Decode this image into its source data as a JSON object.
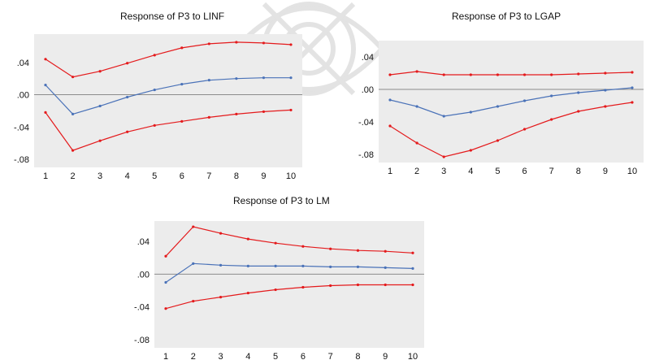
{
  "colors": {
    "response": "#4a72b8",
    "band": "#e41a1c",
    "plot_bg": "#ececec",
    "zero_line": "#8c8c8c"
  },
  "chart_data": [
    {
      "type": "line",
      "title": "Response of P3 to LINF",
      "x": [
        1,
        2,
        3,
        4,
        5,
        6,
        7,
        8,
        9,
        10
      ],
      "ylim": [
        -0.09,
        0.075
      ],
      "yticks": [
        ".04",
        ".00",
        "-.04",
        "-.08"
      ],
      "ytick_values": [
        0.04,
        0.0,
        -0.04,
        -0.08
      ],
      "grid": false,
      "series": [
        {
          "role": "response",
          "values": [
            0.012,
            -0.024,
            -0.014,
            -0.003,
            0.006,
            0.013,
            0.018,
            0.02,
            0.021,
            0.021
          ]
        },
        {
          "role": "upper",
          "values": [
            0.044,
            0.022,
            0.029,
            0.039,
            0.049,
            0.058,
            0.063,
            0.065,
            0.064,
            0.062
          ]
        },
        {
          "role": "lower",
          "values": [
            -0.022,
            -0.069,
            -0.057,
            -0.046,
            -0.038,
            -0.033,
            -0.028,
            -0.024,
            -0.021,
            -0.019
          ]
        }
      ]
    },
    {
      "type": "line",
      "title": "Response of P3 to LGAP",
      "x": [
        1,
        2,
        3,
        4,
        5,
        6,
        7,
        8,
        9,
        10
      ],
      "ylim": [
        -0.09,
        0.06
      ],
      "yticks": [
        ".04",
        ".00",
        "-.04",
        "-.08"
      ],
      "ytick_values": [
        0.04,
        0.0,
        -0.04,
        -0.08
      ],
      "grid": false,
      "series": [
        {
          "role": "response",
          "values": [
            -0.013,
            -0.021,
            -0.033,
            -0.028,
            -0.021,
            -0.014,
            -0.008,
            -0.004,
            -0.001,
            0.002
          ]
        },
        {
          "role": "upper",
          "values": [
            0.018,
            0.022,
            0.018,
            0.018,
            0.018,
            0.018,
            0.018,
            0.019,
            0.02,
            0.021
          ]
        },
        {
          "role": "lower",
          "values": [
            -0.045,
            -0.066,
            -0.083,
            -0.075,
            -0.063,
            -0.049,
            -0.037,
            -0.027,
            -0.021,
            -0.016
          ]
        }
      ]
    },
    {
      "type": "line",
      "title": "Response of P3 to LM",
      "x": [
        1,
        2,
        3,
        4,
        5,
        6,
        7,
        8,
        9,
        10
      ],
      "ylim": [
        -0.09,
        0.065
      ],
      "yticks": [
        ".04",
        ".00",
        "-.04",
        "-.08"
      ],
      "ytick_values": [
        0.04,
        0.0,
        -0.04,
        -0.08
      ],
      "grid": false,
      "series": [
        {
          "role": "response",
          "values": [
            -0.01,
            0.013,
            0.011,
            0.01,
            0.01,
            0.01,
            0.009,
            0.009,
            0.008,
            0.007
          ]
        },
        {
          "role": "upper",
          "values": [
            0.022,
            0.058,
            0.05,
            0.043,
            0.038,
            0.034,
            0.031,
            0.029,
            0.028,
            0.026
          ]
        },
        {
          "role": "lower",
          "values": [
            -0.042,
            -0.033,
            -0.028,
            -0.023,
            -0.019,
            -0.016,
            -0.014,
            -0.013,
            -0.013,
            -0.013
          ]
        }
      ]
    }
  ]
}
